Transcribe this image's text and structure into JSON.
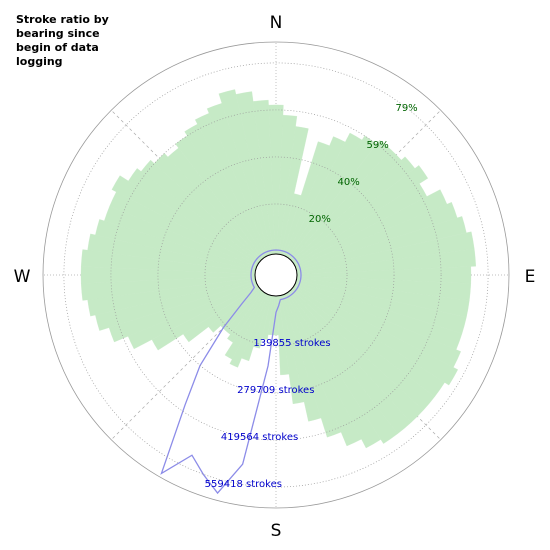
{
  "chart_data": {
    "type": "polar",
    "title": "Stroke ratio by bearing since begin of data logging",
    "direction_labels": [
      "N",
      "E",
      "S",
      "W"
    ],
    "x": [
      0,
      5,
      10,
      15,
      20,
      25,
      30,
      35,
      40,
      45,
      50,
      55,
      60,
      65,
      70,
      75,
      80,
      85,
      90,
      95,
      100,
      105,
      110,
      115,
      120,
      125,
      130,
      135,
      140,
      145,
      150,
      155,
      160,
      165,
      170,
      175,
      180,
      185,
      190,
      195,
      200,
      205,
      210,
      215,
      220,
      225,
      230,
      235,
      240,
      245,
      250,
      255,
      260,
      265,
      270,
      275,
      280,
      285,
      290,
      295,
      300,
      305,
      310,
      315,
      320,
      325,
      330,
      335,
      340,
      345,
      350,
      355
    ],
    "series": [
      {
        "mark": "bar",
        "color": "#c6eac6",
        "values": [
          61.5,
          57.3,
          53,
          25,
          48.8,
          53,
          57.3,
          59.4,
          61.5,
          61.5,
          63.6,
          65.7,
          61.5,
          67.8,
          69.9,
          72,
          74.1,
          74.1,
          72,
          72,
          72,
          72,
          72,
          74.1,
          76.2,
          74.1,
          74.1,
          74.1,
          74.1,
          74.1,
          72,
          67.8,
          61.5,
          53,
          44.6,
          32,
          15.2,
          15.2,
          17.3,
          21.5,
          27.8,
          32,
          29.9,
          23.6,
          21.5,
          21.5,
          25.7,
          36.2,
          48.8,
          57.3,
          63.6,
          67.8,
          69.9,
          72,
          72,
          72,
          69.9,
          67.8,
          65.7,
          65.7,
          67.8,
          63.6,
          61.5,
          59.4,
          57.3,
          59.4,
          61.5,
          63.6,
          65.7,
          69.9,
          67.8,
          63.6
        ]
      },
      {
        "mark": "line",
        "color": "#8c8ce8",
        "axis": "y2",
        "values": [
          3000,
          3000,
          3000,
          3000,
          3000,
          3000,
          3000,
          3000,
          3000,
          3000,
          3000,
          3000,
          3000,
          3000,
          3000,
          3000,
          3000,
          3000,
          3000,
          3000,
          3000,
          3000,
          3000,
          3000,
          3000,
          3000,
          3000,
          3000,
          3000,
          3000,
          3000,
          3000,
          3000,
          3000,
          3000,
          20000,
          40000,
          200000,
          500000,
          600000,
          560000,
          520000,
          610000,
          400000,
          280000,
          150000,
          60000,
          20000,
          3000,
          3000,
          3000,
          3000,
          3000,
          3000,
          3000,
          3000,
          3000,
          3000,
          3000,
          3000,
          3000,
          3000,
          3000,
          3000,
          3000,
          3000,
          3000,
          3000,
          3000,
          3000,
          3000,
          3000
        ]
      }
    ],
    "ylim": [
      0,
      88
    ],
    "yticks": [
      {
        "value": 19.8,
        "label": "20%"
      },
      {
        "value": 39.6,
        "label": "40%"
      },
      {
        "value": 59.4,
        "label": "59%"
      },
      {
        "value": 79.2,
        "label": "79%"
      }
    ],
    "y2lim": [
      0,
      621600
    ],
    "y2ticks": [
      {
        "value": 139855,
        "label": "139855 strokes"
      },
      {
        "value": 279709,
        "label": "279709 strokes"
      },
      {
        "value": 419564,
        "label": "419564 strokes"
      },
      {
        "value": 559418,
        "label": "559418 strokes"
      }
    ],
    "grid": true
  }
}
